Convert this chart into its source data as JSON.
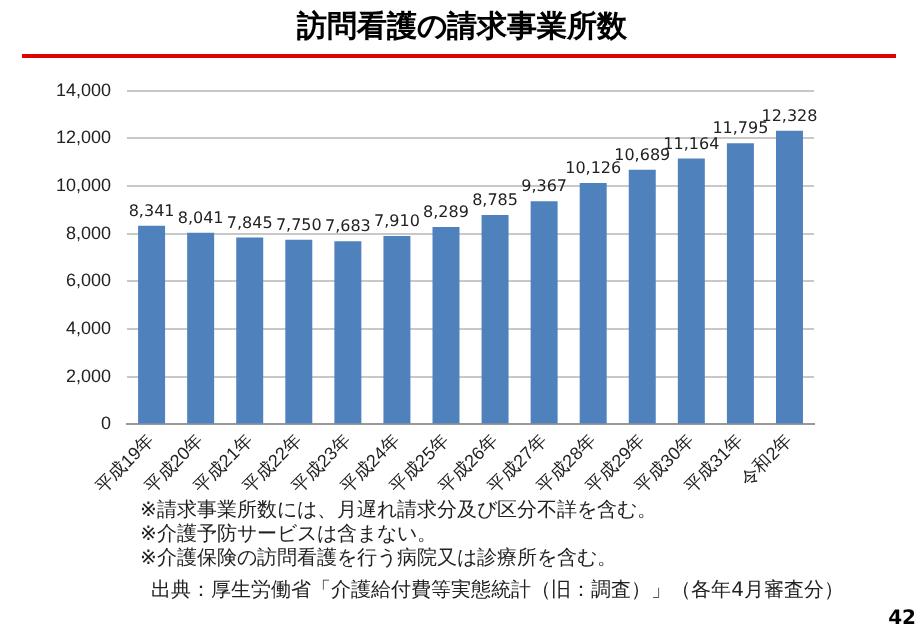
{
  "chart_data": {
    "type": "bar",
    "title": "訪問看護の請求事業所数",
    "categories": [
      "平成19年",
      "平成20年",
      "平成21年",
      "平成22年",
      "平成23年",
      "平成24年",
      "平成25年",
      "平成26年",
      "平成27年",
      "平成28年",
      "平成29年",
      "平成30年",
      "平成31年",
      "令和2年"
    ],
    "values": [
      8341,
      8041,
      7845,
      7750,
      7683,
      7910,
      8289,
      8785,
      9367,
      10126,
      10689,
      11164,
      11795,
      12328
    ],
    "value_labels": [
      "8,341",
      "8,041",
      "7,845",
      "7,750",
      "7,683",
      "7,910",
      "8,289",
      "8,785",
      "9,367",
      "10,126",
      "10,689",
      "11,164",
      "11,795",
      "12,328"
    ],
    "color": "#4f81bd",
    "ylim": [
      0,
      14000
    ],
    "yticks": [
      0,
      {
        "value": 2000,
        "label": "2,000"
      },
      {
        "value": 4000,
        "label": "4,000"
      },
      {
        "value": 6000,
        "label": "6,000"
      },
      {
        "value": 8000,
        "label": "8,000"
      },
      {
        "value": 10000,
        "label": "10,000"
      },
      {
        "value": 12000,
        "label": "12,000"
      },
      {
        "value": 14000,
        "label": "14,000"
      }
    ],
    "grid": "y",
    "annotations": [
      "※請求事業所数には、月遅れ請求分及び区分不詳を含む。",
      "※介護予防サービスは含まない。",
      "※介護保険の訪問看護を行う病院又は診療所を含む。",
      "出典：厚生労働省「介護給付費等実態統計（旧：調査）」（各年4月審査分）",
      "42"
    ]
  }
}
